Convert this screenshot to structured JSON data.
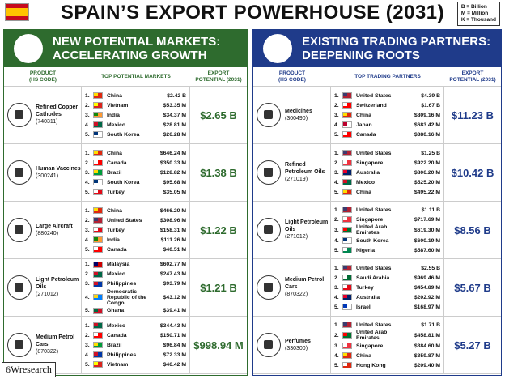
{
  "header": {
    "title": "SPAIN’S EXPORT POWERHOUSE (2031)",
    "legend": [
      "B = Billion",
      "M = Million",
      "K = Thousand"
    ]
  },
  "panels": [
    {
      "title": [
        "NEW POTENTIAL MARKETS:",
        "ACCELERATING GROWTH"
      ],
      "color": "#2e6b2e",
      "columns": [
        [
          "PRODUCT",
          "(HS CODE)"
        ],
        [
          "TOP POTENTIAL MARKETS"
        ],
        [
          "EXPORT",
          "POTENTIAL (2031)"
        ]
      ],
      "rows": [
        {
          "product": "Refined Copper Cathodes",
          "code": "(740311)",
          "potential": "$2.65 B",
          "markets": [
            {
              "rank": "1.",
              "country": "China",
              "value": "$2.42 B",
              "flag": [
                "#de2910",
                "#ffde00"
              ]
            },
            {
              "rank": "2.",
              "country": "Vietnam",
              "value": "$53.35 M",
              "flag": [
                "#da251d",
                "#ffff00"
              ]
            },
            {
              "rank": "3.",
              "country": "India",
              "value": "$34.37 M",
              "flag": [
                "#ff9933",
                "#138808"
              ]
            },
            {
              "rank": "4.",
              "country": "Mexico",
              "value": "$28.81 M",
              "flag": [
                "#006847",
                "#ce1126"
              ]
            },
            {
              "rank": "5.",
              "country": "South Korea",
              "value": "$26.28 M",
              "flag": [
                "#ffffff",
                "#003478"
              ]
            }
          ]
        },
        {
          "product": "Human Vaccines",
          "code": "(300241)",
          "potential": "$1.38 B",
          "markets": [
            {
              "rank": "1.",
              "country": "China",
              "value": "$646.24 M",
              "flag": [
                "#de2910",
                "#ffde00"
              ]
            },
            {
              "rank": "2.",
              "country": "Canada",
              "value": "$350.33 M",
              "flag": [
                "#ff0000",
                "#ffffff"
              ]
            },
            {
              "rank": "3.",
              "country": "Brazil",
              "value": "$128.82 M",
              "flag": [
                "#009c3b",
                "#ffdf00"
              ]
            },
            {
              "rank": "4.",
              "country": "South Korea",
              "value": "$95.68 M",
              "flag": [
                "#ffffff",
                "#003478"
              ]
            },
            {
              "rank": "5.",
              "country": "Turkey",
              "value": "$35.05 M",
              "flag": [
                "#e30a17",
                "#ffffff"
              ]
            }
          ]
        },
        {
          "product": "Large Aircraft",
          "code": "(880240)",
          "potential": "$1.22 B",
          "markets": [
            {
              "rank": "1.",
              "country": "China",
              "value": "$466.20 M",
              "flag": [
                "#de2910",
                "#ffde00"
              ]
            },
            {
              "rank": "2.",
              "country": "United States",
              "value": "$308.96 M",
              "flag": [
                "#b22234",
                "#3c3b6e"
              ]
            },
            {
              "rank": "3.",
              "country": "Turkey",
              "value": "$158.31 M",
              "flag": [
                "#e30a17",
                "#ffffff"
              ]
            },
            {
              "rank": "4.",
              "country": "India",
              "value": "$111.26 M",
              "flag": [
                "#ff9933",
                "#138808"
              ]
            },
            {
              "rank": "5.",
              "country": "Canada",
              "value": "$40.51 M",
              "flag": [
                "#ff0000",
                "#ffffff"
              ]
            }
          ]
        },
        {
          "product": "Light Petroleum Oils",
          "code": "(271012)",
          "potential": "$1.21 B",
          "markets": [
            {
              "rank": "1.",
              "country": "Malaysia",
              "value": "$602.77 M",
              "flag": [
                "#cc0001",
                "#010066"
              ]
            },
            {
              "rank": "2.",
              "country": "Mexico",
              "value": "$247.43 M",
              "flag": [
                "#006847",
                "#ce1126"
              ]
            },
            {
              "rank": "3.",
              "country": "Philippines",
              "value": "$93.79 M",
              "flag": [
                "#0038a8",
                "#ce1126"
              ]
            },
            {
              "rank": "4.",
              "country": "Democratic Republic of the Congo",
              "value": "$43.12 M",
              "flag": [
                "#007fff",
                "#f7d618"
              ]
            },
            {
              "rank": "5.",
              "country": "Ghana",
              "value": "$39.41 M",
              "flag": [
                "#ce1126",
                "#006b3f"
              ]
            }
          ]
        },
        {
          "product": "Medium Petrol Cars",
          "code": "(870322)",
          "potential": "$998.94 M",
          "markets": [
            {
              "rank": "1.",
              "country": "Mexico",
              "value": "$344.43 M",
              "flag": [
                "#006847",
                "#ce1126"
              ]
            },
            {
              "rank": "2.",
              "country": "Canada",
              "value": "$150.71 M",
              "flag": [
                "#ff0000",
                "#ffffff"
              ]
            },
            {
              "rank": "3.",
              "country": "Brazil",
              "value": "$96.84 M",
              "flag": [
                "#009c3b",
                "#ffdf00"
              ]
            },
            {
              "rank": "4.",
              "country": "Philippines",
              "value": "$72.33 M",
              "flag": [
                "#0038a8",
                "#ce1126"
              ]
            },
            {
              "rank": "5.",
              "country": "Vietnam",
              "value": "$46.42 M",
              "flag": [
                "#da251d",
                "#ffff00"
              ]
            }
          ]
        }
      ]
    },
    {
      "title": [
        "EXISTING TRADING PARTNERS:",
        "DEEPENING ROOTS"
      ],
      "color": "#1f3b8a",
      "columns": [
        [
          "PRODUCT",
          "(HS CODE)"
        ],
        [
          "TOP TRADING PARTNERS"
        ],
        [
          "EXPORT",
          "POTENTIAL (2031)"
        ]
      ],
      "rows": [
        {
          "product": "Medicines",
          "code": "(300490)",
          "potential": "$11.23 B",
          "markets": [
            {
              "rank": "1.",
              "country": "United States",
              "value": "$4.39 B",
              "flag": [
                "#b22234",
                "#3c3b6e"
              ]
            },
            {
              "rank": "2.",
              "country": "Switzerland",
              "value": "$1.67 B",
              "flag": [
                "#ff0000",
                "#ffffff"
              ]
            },
            {
              "rank": "3.",
              "country": "China",
              "value": "$809.16 M",
              "flag": [
                "#de2910",
                "#ffde00"
              ]
            },
            {
              "rank": "4.",
              "country": "Japan",
              "value": "$683.42 M",
              "flag": [
                "#ffffff",
                "#bc002d"
              ]
            },
            {
              "rank": "5.",
              "country": "Canada",
              "value": "$380.16 M",
              "flag": [
                "#ff0000",
                "#ffffff"
              ]
            }
          ]
        },
        {
          "product": "Refined Petroleum Oils",
          "code": "(271019)",
          "potential": "$10.42 B",
          "markets": [
            {
              "rank": "1.",
              "country": "United States",
              "value": "$1.25 B",
              "flag": [
                "#b22234",
                "#3c3b6e"
              ]
            },
            {
              "rank": "2.",
              "country": "Singapore",
              "value": "$922.20 M",
              "flag": [
                "#ef3340",
                "#ffffff"
              ]
            },
            {
              "rank": "3.",
              "country": "Australia",
              "value": "$806.20 M",
              "flag": [
                "#012169",
                "#e4002b"
              ]
            },
            {
              "rank": "4.",
              "country": "Mexico",
              "value": "$525.20 M",
              "flag": [
                "#006847",
                "#ce1126"
              ]
            },
            {
              "rank": "5.",
              "country": "China",
              "value": "$495.22 M",
              "flag": [
                "#de2910",
                "#ffde00"
              ]
            }
          ]
        },
        {
          "product": "Light Petroleum Oils",
          "code": "(271012)",
          "potential": "$8.56 B",
          "markets": [
            {
              "rank": "1.",
              "country": "United States",
              "value": "$1.11 B",
              "flag": [
                "#b22234",
                "#3c3b6e"
              ]
            },
            {
              "rank": "2.",
              "country": "Singapore",
              "value": "$717.69 M",
              "flag": [
                "#ef3340",
                "#ffffff"
              ]
            },
            {
              "rank": "3.",
              "country": "United Arab Emirates",
              "value": "$619.30 M",
              "flag": [
                "#00732f",
                "#ff0000"
              ]
            },
            {
              "rank": "4.",
              "country": "South Korea",
              "value": "$600.19 M",
              "flag": [
                "#ffffff",
                "#003478"
              ]
            },
            {
              "rank": "5.",
              "country": "Nigeria",
              "value": "$587.60 M",
              "flag": [
                "#008751",
                "#ffffff"
              ]
            }
          ]
        },
        {
          "product": "Medium Petrol Cars",
          "code": "(870322)",
          "potential": "$5.67 B",
          "markets": [
            {
              "rank": "1.",
              "country": "United States",
              "value": "$2.55 B",
              "flag": [
                "#b22234",
                "#3c3b6e"
              ]
            },
            {
              "rank": "2.",
              "country": "Saudi Arabia",
              "value": "$969.46 M",
              "flag": [
                "#006c35",
                "#ffffff"
              ]
            },
            {
              "rank": "3.",
              "country": "Turkey",
              "value": "$454.89 M",
              "flag": [
                "#e30a17",
                "#ffffff"
              ]
            },
            {
              "rank": "4.",
              "country": "Australia",
              "value": "$202.92 M",
              "flag": [
                "#012169",
                "#e4002b"
              ]
            },
            {
              "rank": "5.",
              "country": "Israel",
              "value": "$168.97 M",
              "flag": [
                "#ffffff",
                "#0038b8"
              ]
            }
          ]
        },
        {
          "product": "Perfumes",
          "code": "(330300)",
          "potential": "$5.27 B",
          "markets": [
            {
              "rank": "1.",
              "country": "United States",
              "value": "$1.71 B",
              "flag": [
                "#b22234",
                "#3c3b6e"
              ]
            },
            {
              "rank": "2.",
              "country": "United Arab Emirates",
              "value": "$458.81 M",
              "flag": [
                "#00732f",
                "#ff0000"
              ]
            },
            {
              "rank": "3.",
              "country": "Singapore",
              "value": "$384.60 M",
              "flag": [
                "#ef3340",
                "#ffffff"
              ]
            },
            {
              "rank": "4.",
              "country": "China",
              "value": "$359.87 M",
              "flag": [
                "#de2910",
                "#ffde00"
              ]
            },
            {
              "rank": "5.",
              "country": "Hong Kong",
              "value": "$209.40 M",
              "flag": [
                "#de2910",
                "#ffffff"
              ]
            }
          ]
        }
      ]
    }
  ],
  "footer": {
    "brand": "6Wresearch"
  }
}
